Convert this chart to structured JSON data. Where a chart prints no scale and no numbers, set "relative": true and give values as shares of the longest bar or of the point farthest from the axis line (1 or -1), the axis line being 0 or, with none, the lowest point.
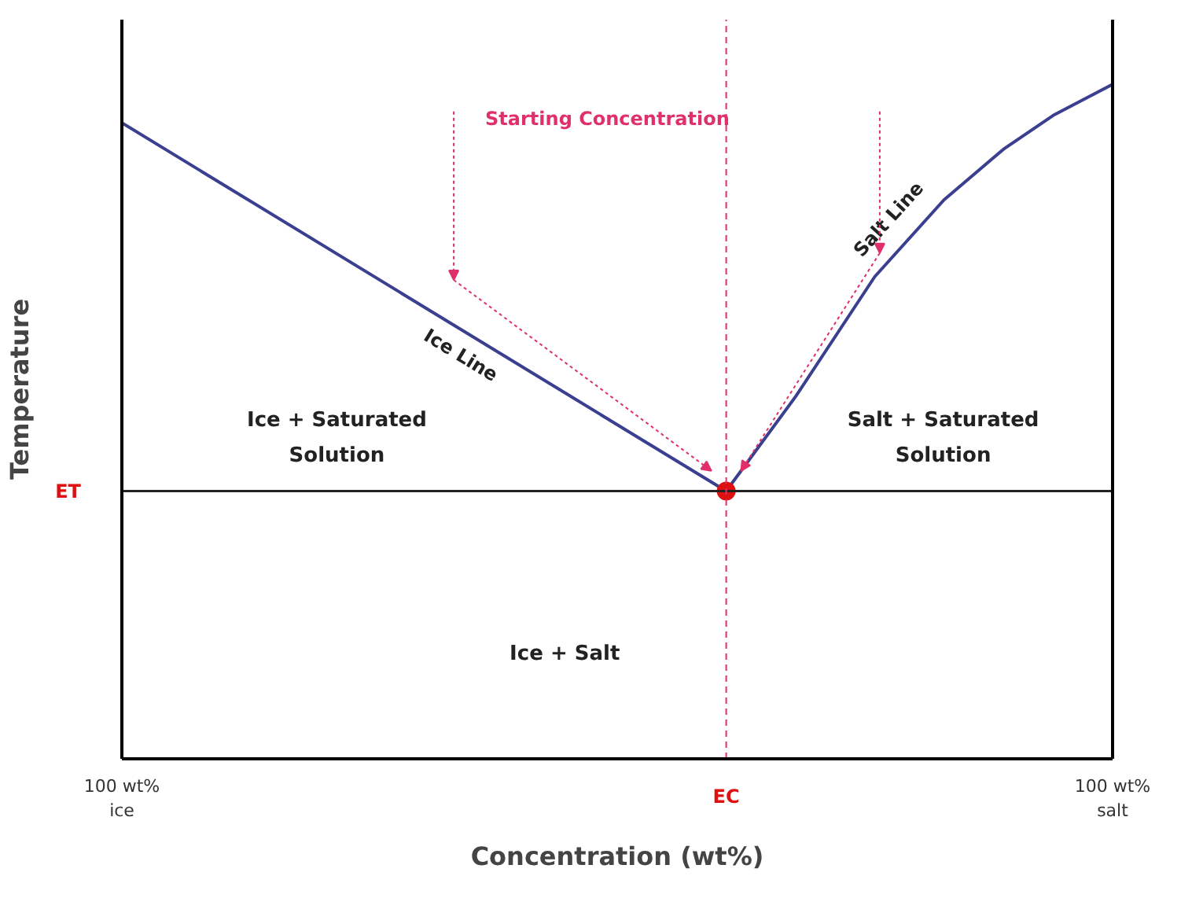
{
  "chart_data": {
    "type": "line",
    "relative": true,
    "xlabel": "Concentration (wt%)",
    "ylabel": "Temperature",
    "categories": [
      "100 wt% ice",
      null,
      null,
      null,
      null,
      null,
      null,
      null,
      null,
      null,
      null,
      null,
      null,
      null,
      null,
      null,
      null,
      null,
      null,
      null,
      null,
      null,
      null,
      null,
      null,
      null,
      null,
      null,
      null,
      null,
      null,
      null,
      null,
      null,
      null,
      null,
      null,
      null,
      null,
      null,
      null,
      null,
      null,
      null,
      null,
      null,
      null,
      null,
      null,
      null,
      null,
      null,
      null,
      null,
      null,
      null,
      null,
      null,
      null,
      null,
      null,
      "EC",
      null,
      null,
      null,
      null,
      null,
      null,
      null,
      null,
      null,
      null,
      null,
      null,
      null,
      null,
      null,
      null,
      null,
      null,
      null,
      null,
      null,
      null,
      null,
      null,
      null,
      null,
      null,
      null,
      null,
      null,
      null,
      null,
      null,
      null,
      null,
      null,
      null,
      null,
      "100 wt% salt"
    ],
    "series": [
      {
        "name": "Ice Line",
        "color": "#3a3f8f",
        "values": [
          0.943,
          null,
          null,
          null,
          null,
          null,
          null,
          null,
          null,
          null,
          null,
          null,
          null,
          null,
          null,
          null,
          null,
          null,
          null,
          null,
          null,
          null,
          null,
          null,
          null,
          null,
          null,
          null,
          null,
          null,
          null,
          null,
          null,
          null,
          null,
          null,
          null,
          null,
          null,
          null,
          null,
          null,
          null,
          null,
          null,
          null,
          null,
          null,
          null,
          null,
          null,
          null,
          null,
          null,
          null,
          null,
          null,
          null,
          null,
          null,
          null,
          0.397,
          null,
          null,
          null,
          null,
          null,
          null,
          null,
          null,
          null,
          null,
          null,
          null,
          null,
          null,
          null,
          null,
          null,
          null,
          null,
          null,
          null,
          null,
          null,
          null,
          null,
          null,
          null,
          null,
          null,
          null,
          null,
          null,
          null,
          null,
          null,
          null,
          null,
          null,
          null
        ]
      },
      {
        "name": "Salt Line",
        "color": "#3a3f8f",
        "values": [
          null,
          null,
          null,
          null,
          null,
          null,
          null,
          null,
          null,
          null,
          null,
          null,
          null,
          null,
          null,
          null,
          null,
          null,
          null,
          null,
          null,
          null,
          null,
          null,
          null,
          null,
          null,
          null,
          null,
          null,
          null,
          null,
          null,
          null,
          null,
          null,
          null,
          null,
          null,
          null,
          null,
          null,
          null,
          null,
          null,
          null,
          null,
          null,
          null,
          null,
          null,
          null,
          null,
          null,
          null,
          null,
          null,
          null,
          null,
          null,
          null,
          0.397,
          null,
          null,
          null,
          null,
          null,
          null,
          0.537,
          null,
          null,
          null,
          null,
          null,
          null,
          null,
          0.715,
          null,
          null,
          null,
          null,
          null,
          null,
          0.829,
          null,
          null,
          null,
          null,
          null,
          0.904,
          null,
          null,
          null,
          null,
          0.954,
          null,
          null,
          null,
          null,
          null,
          1.0
        ]
      },
      {
        "type": "scatter",
        "color": "#dd1111",
        "marker": "circle",
        "values": [
          null,
          null,
          null,
          null,
          null,
          null,
          null,
          null,
          null,
          null,
          null,
          null,
          null,
          null,
          null,
          null,
          null,
          null,
          null,
          null,
          null,
          null,
          null,
          null,
          null,
          null,
          null,
          null,
          null,
          null,
          null,
          null,
          null,
          null,
          null,
          null,
          null,
          null,
          null,
          null,
          null,
          null,
          null,
          null,
          null,
          null,
          null,
          null,
          null,
          null,
          null,
          null,
          null,
          null,
          null,
          null,
          null,
          null,
          null,
          null,
          null,
          0.397,
          null,
          null,
          null,
          null,
          null,
          null,
          null,
          null,
          null,
          null,
          null,
          null,
          null,
          null,
          null,
          null,
          null,
          null,
          null,
          null,
          null,
          null,
          null,
          null,
          null,
          null,
          null,
          null,
          null,
          null,
          null,
          null,
          null,
          null,
          null,
          null,
          null,
          null,
          null
        ]
      }
    ],
    "ref_lines": [
      {
        "axis": "y",
        "value": 0.397,
        "label": "ET",
        "color": "#222222",
        "line_style": "solid"
      },
      {
        "axis": "x",
        "value": "EC",
        "color": "#e0306a",
        "line_style": "dashed"
      }
    ],
    "annotations": [
      "Starting Concentration",
      "Ice + Saturated Solution",
      "Salt + Saturated Solution",
      "Ice + Salt"
    ],
    "tick_labels": "x",
    "line_style": "solid"
  }
}
